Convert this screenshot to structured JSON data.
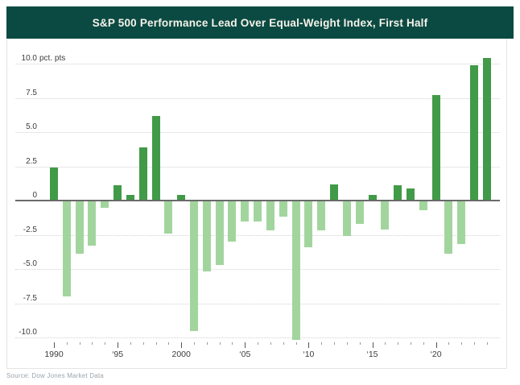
{
  "chart_data": {
    "type": "bar",
    "title": "S&P 500 Performance Lead Over Equal-Weight Index, First Half",
    "unit_label": "pct. pts",
    "source": "Source: Dow Jones Market Data",
    "years": [
      1990,
      1991,
      1992,
      1993,
      1994,
      1995,
      1996,
      1997,
      1998,
      1999,
      2000,
      2001,
      2002,
      2003,
      2004,
      2005,
      2006,
      2007,
      2008,
      2009,
      2010,
      2011,
      2012,
      2013,
      2014,
      2015,
      2016,
      2017,
      2018,
      2019,
      2020,
      2021,
      2022,
      2023,
      2024
    ],
    "values": [
      2.4,
      -7.0,
      -3.9,
      -3.3,
      -0.5,
      1.1,
      0.4,
      3.9,
      6.2,
      -2.4,
      0.4,
      -9.5,
      -5.2,
      -4.7,
      -3.0,
      -1.5,
      -1.5,
      -2.2,
      -1.2,
      -10.2,
      -3.4,
      -2.2,
      1.2,
      -2.6,
      -1.7,
      0.4,
      -2.1,
      1.1,
      0.9,
      -0.7,
      7.7,
      -3.9,
      -3.2,
      9.9,
      10.4
    ],
    "y_ticks": [
      "10.0",
      "7.5",
      "5.0",
      "2.5",
      "0",
      "-2.5",
      "-5.0",
      "-7.5",
      "-10.0"
    ],
    "x_labels": [
      {
        "year": 1990,
        "label": "1990"
      },
      {
        "year": 1995,
        "label": "‘95"
      },
      {
        "year": 2000,
        "label": "2000"
      },
      {
        "year": 2005,
        "label": "‘05"
      },
      {
        "year": 2010,
        "label": "‘10"
      },
      {
        "year": 2015,
        "label": "‘15"
      },
      {
        "year": 2020,
        "label": "‘20"
      }
    ],
    "ylim": [
      -10.8,
      10.8
    ],
    "grid": true,
    "legend": "none",
    "colors": {
      "positive_bar": "#419a48",
      "negative_bar": "#a2d59e",
      "header_bg": "#0b4a42",
      "header_text": "#f6f3ea",
      "axis_line": "#6a6a6a"
    }
  }
}
